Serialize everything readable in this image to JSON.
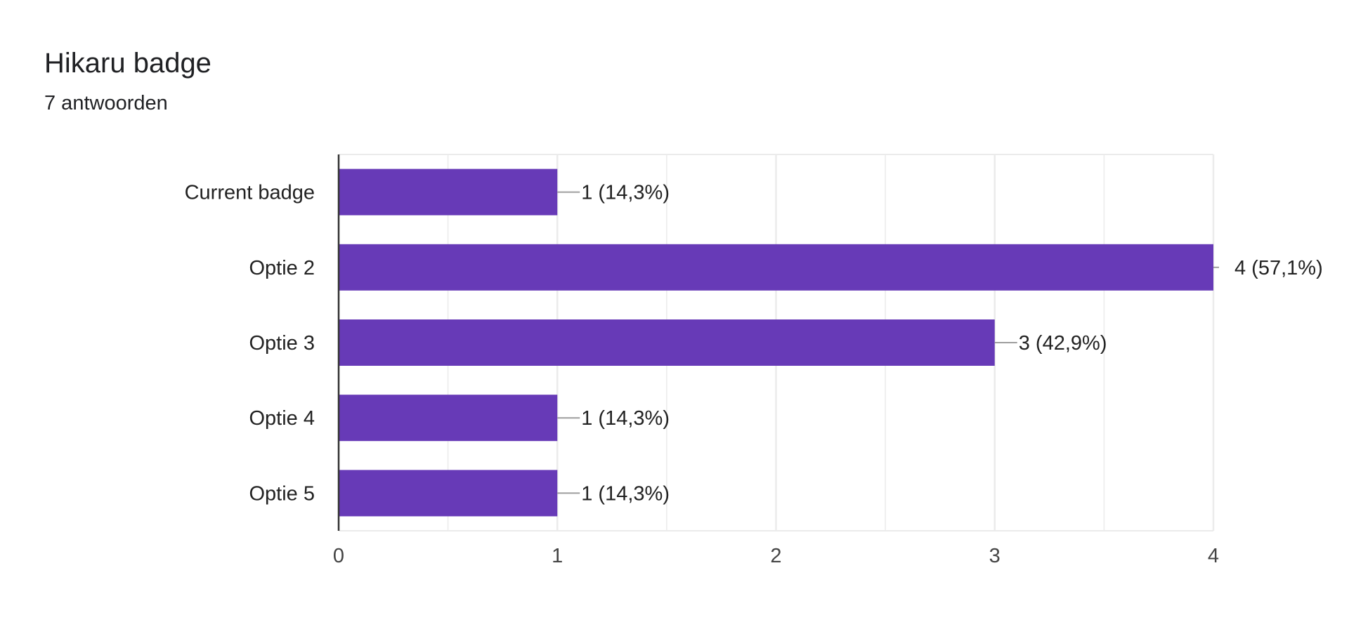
{
  "header": {
    "title": "Hikaru badge",
    "responses": "7 antwoorden"
  },
  "colors": {
    "bar": "#673ab7",
    "axis": "#333333",
    "grid": "#ebebeb",
    "leader": "#9e9e9e"
  },
  "chart_data": {
    "type": "bar",
    "orientation": "horizontal",
    "title": "Hikaru badge",
    "categories": [
      "Current badge",
      "Optie 2",
      "Optie 3",
      "Optie 4",
      "Optie 5"
    ],
    "values": [
      1,
      4,
      3,
      1,
      1
    ],
    "data_labels": [
      "1 (14,3%)",
      "4 (57,1%)",
      "3 (42,9%)",
      "1 (14,3%)",
      "1 (14,3%)"
    ],
    "xlim": [
      0,
      4
    ],
    "x_ticks": [
      0,
      1,
      2,
      3,
      4
    ],
    "x_tick_labels": [
      "0",
      "1",
      "2",
      "3",
      "4"
    ],
    "grid": true,
    "legend": "none"
  }
}
